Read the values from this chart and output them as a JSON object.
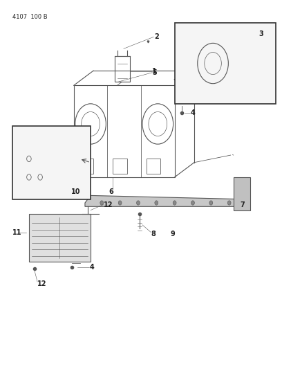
{
  "header_text": "4107  100 B",
  "bg_color": "#ffffff",
  "line_color": "#555555",
  "text_color": "#222222",
  "figsize": [
    4.08,
    5.33
  ],
  "dpi": 100
}
